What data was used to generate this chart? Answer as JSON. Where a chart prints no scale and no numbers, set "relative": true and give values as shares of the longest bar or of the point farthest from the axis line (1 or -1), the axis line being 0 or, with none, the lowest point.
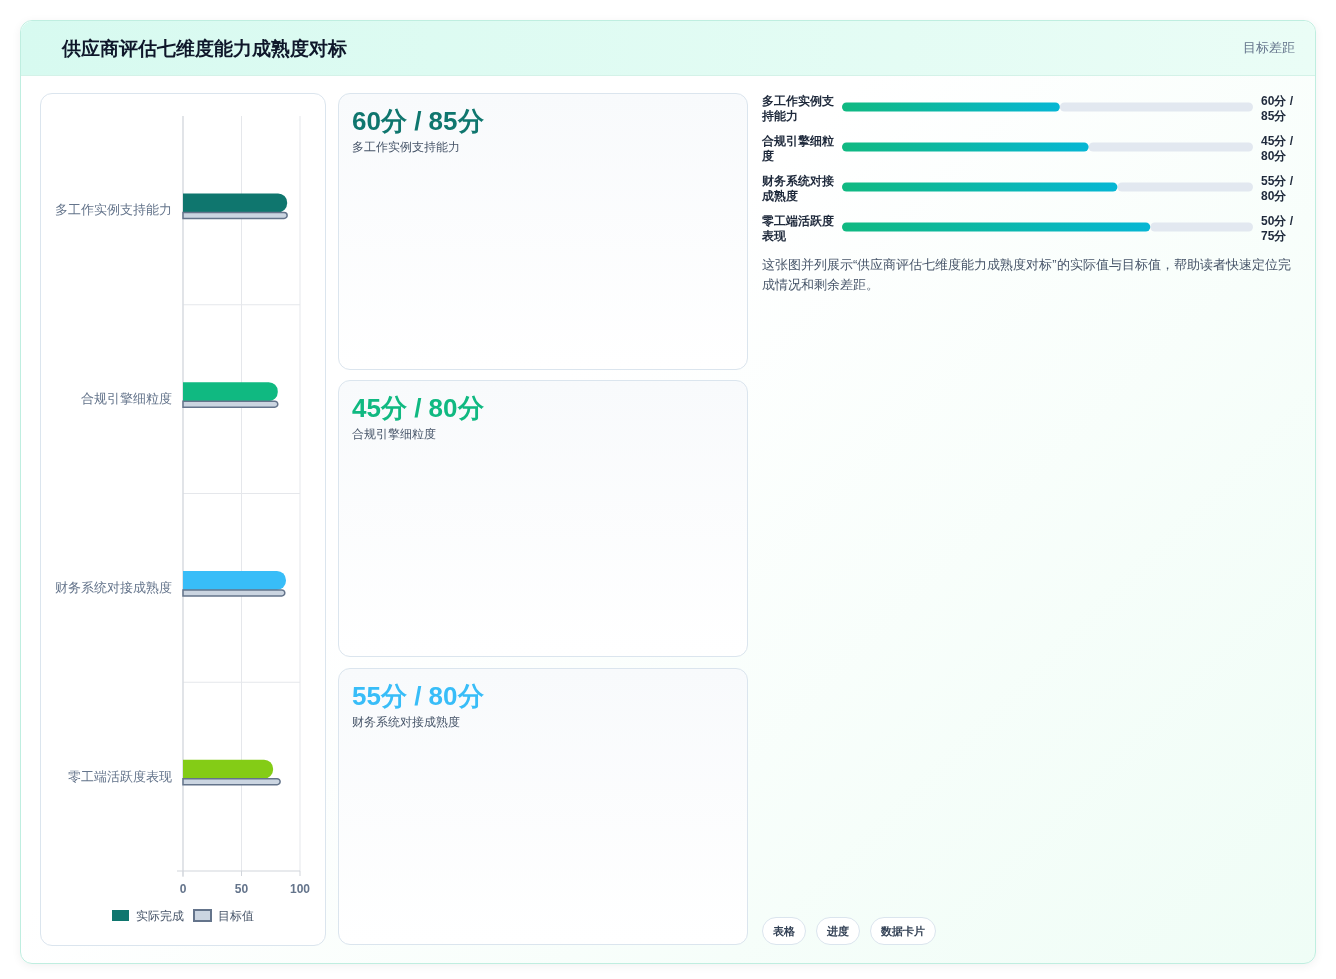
{
  "chart_data": [
    {
      "type": "other",
      "title": "供应商评估七维度能力成熟度对标",
      "annotations": [
        "目标差距"
      ]
    },
    {
      "type": "bar",
      "orientation": "horizontal",
      "categories": [
        "多工作实例支持能力",
        "合规引擎细粒度",
        "财务系统对接成熟度",
        "零工端活跃度表现"
      ],
      "series": [
        {
          "name": "实际完成",
          "colors": [
            "#0f766e",
            "#10b981",
            "#38bdf8",
            "#84cc16"
          ],
          "values": [
            89,
            81,
            88,
            77
          ]
        },
        {
          "name": "目标值",
          "color": "#cbd5e1",
          "values": [
            89,
            81,
            87,
            83
          ]
        }
      ],
      "xlim": [
        0,
        100
      ],
      "xticks": [
        0,
        50,
        100
      ],
      "grid": true,
      "legend": "bottom"
    },
    {
      "type": "other",
      "title": "60分 / 85分",
      "subtitle": "多工作实例支持能力",
      "color": "#0f766e"
    },
    {
      "type": "other",
      "title": "45分 / 80分",
      "subtitle": "合规引擎细粒度",
      "color": "#10b981"
    },
    {
      "type": "other",
      "title": "55分 / 80分",
      "subtitle": "财务系统对接成熟度",
      "color": "#38bdf8"
    },
    {
      "type": "bar",
      "orientation": "horizontal",
      "stacked": true,
      "relative": true,
      "categories": [
        "多工作实例支持能力",
        "合规引擎细粒度",
        "财务系统对接成熟度",
        "零工端活跃度表现"
      ],
      "series": [
        {
          "color": "#10b981",
          "values": [
            0.53,
            0.6,
            0.67,
            0.75
          ]
        },
        {
          "color": "#e2e8f0",
          "values": [
            0.47,
            0.4,
            0.33,
            0.25
          ]
        }
      ],
      "annotations": [
        "60分 / 85分",
        "45分 / 80分",
        "55分 / 80分",
        "50分 / 75分",
        "这张图并列展示“供应商评估七维度能力成熟度对标”的实际值与目标值，帮助读者快速定位完成情况和剩余差距。"
      ]
    },
    {
      "type": "other",
      "annotations": [
        "表格",
        "进度",
        "数据卡片"
      ]
    }
  ]
}
